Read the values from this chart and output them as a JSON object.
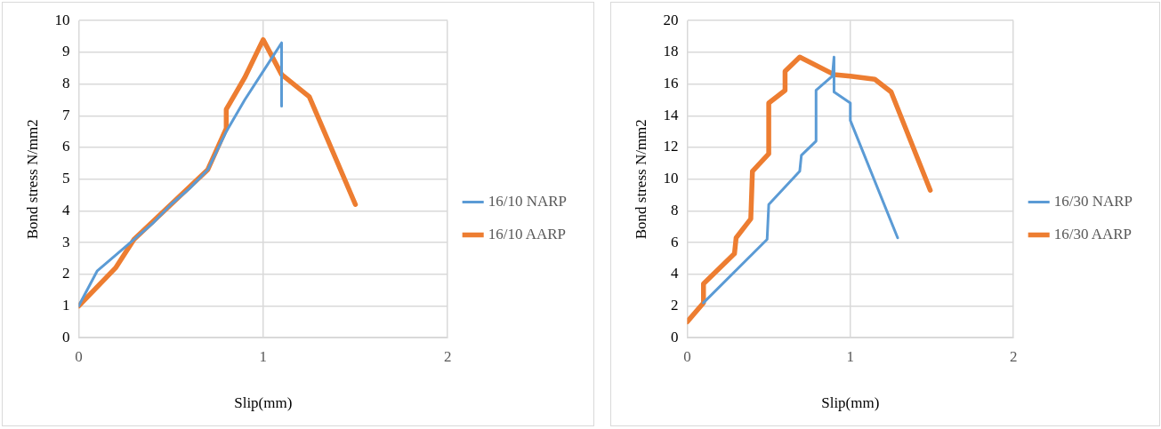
{
  "chart_data": [
    {
      "type": "line",
      "xlabel": "Slip(mm)",
      "ylabel": "Bond stress N/mm2",
      "xlim": [
        0,
        2
      ],
      "ylim": [
        0,
        10
      ],
      "xticks": [
        0,
        1,
        2
      ],
      "yticks": [
        0,
        1,
        2,
        3,
        4,
        5,
        6,
        7,
        8,
        9,
        10
      ],
      "grid": true,
      "legend": "right",
      "marker": "none",
      "series": [
        {
          "name": "16/10 NARP",
          "color": "#5b9bd5",
          "x": [
            0,
            0.1,
            0.2,
            0.3,
            0.4,
            0.5,
            0.6,
            0.7,
            0.8,
            0.9,
            1.0,
            1.1,
            1.1
          ],
          "values": [
            1,
            2.1,
            2.6,
            3.1,
            3.6,
            4.2,
            4.7,
            5.3,
            6.5,
            7.5,
            8.4,
            9.3,
            7.3
          ]
        },
        {
          "name": "16/10 AARP",
          "color": "#ed7d31",
          "x": [
            0,
            0.2,
            0.3,
            0.5,
            0.7,
            0.8,
            0.8,
            0.9,
            1.0,
            1.1,
            1.25,
            1.5
          ],
          "values": [
            1,
            2.2,
            3.1,
            4.2,
            5.3,
            6.6,
            7.2,
            8.2,
            9.4,
            8.3,
            7.6,
            4.2
          ]
        }
      ]
    },
    {
      "type": "line",
      "xlabel": "Slip(mm)",
      "ylabel": "Bond stress N/mm2",
      "xlim": [
        0,
        2
      ],
      "ylim": [
        0,
        20
      ],
      "xticks": [
        0,
        1,
        2
      ],
      "yticks": [
        0,
        2,
        4,
        6,
        8,
        10,
        12,
        14,
        16,
        18,
        20
      ],
      "grid": true,
      "legend": "right",
      "marker": "none",
      "series": [
        {
          "name": "16/30 NARP",
          "color": "#5b9bd5",
          "x": [
            0.1,
            0.49,
            0.5,
            0.69,
            0.7,
            0.79,
            0.79,
            0.89,
            0.9,
            0.9,
            1.0,
            1.0,
            1.29
          ],
          "values": [
            2.2,
            6.2,
            8.4,
            10.5,
            11.5,
            12.4,
            15.6,
            16.5,
            17.7,
            15.5,
            14.8,
            13.7,
            6.3
          ]
        },
        {
          "name": "16/30 AARP",
          "color": "#ed7d31",
          "x": [
            0,
            0.1,
            0.1,
            0.29,
            0.3,
            0.39,
            0.4,
            0.5,
            0.5,
            0.6,
            0.6,
            0.69,
            0.9,
            1.0,
            1.15,
            1.25,
            1.49
          ],
          "values": [
            1,
            2.2,
            3.4,
            5.3,
            6.3,
            7.5,
            10.5,
            11.6,
            14.8,
            15.6,
            16.8,
            17.7,
            16.6,
            16.5,
            16.3,
            15.5,
            9.3
          ]
        }
      ]
    }
  ]
}
